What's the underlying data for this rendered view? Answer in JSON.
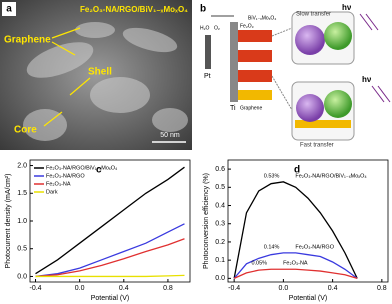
{
  "panels": {
    "a": {
      "label": "a",
      "title": "Fe₂O₃-NA/RGO/BiV₁₋ₓMoₓO₄",
      "annotations": [
        "Graphene",
        "Shell",
        "Core"
      ],
      "scale_bar": "50 nm"
    },
    "b": {
      "label": "b",
      "top_texts": [
        "hν",
        "Slow transfer"
      ],
      "bottom_texts": [
        "hν",
        "Fast transfer"
      ],
      "electrode_texts": [
        "Pt",
        "Ti",
        "Fe₂O₃",
        "BiV₁₋ₓMoₓO₄",
        "Graphene",
        "H₂O",
        "O₂"
      ]
    }
  },
  "chart_data": [
    {
      "type": "line",
      "panel": "c",
      "x_label": "Potential (V)",
      "y_label": "Photocurrent density (mA/cm²)",
      "x": [
        -0.4,
        -0.2,
        0.0,
        0.2,
        0.4,
        0.6,
        0.8,
        0.95
      ],
      "series": [
        {
          "name": "Fe₂O₃-NA/RGO/BiV₁₋ₓMoₓO₄",
          "color": "#000000",
          "values": [
            0.05,
            0.3,
            0.6,
            0.9,
            1.2,
            1.5,
            1.75,
            1.97
          ]
        },
        {
          "name": "Fe₂O₃-NA/RGO",
          "color": "#3a3adf",
          "values": [
            0.0,
            0.05,
            0.15,
            0.3,
            0.45,
            0.6,
            0.8,
            0.95
          ]
        },
        {
          "name": "Fe₂O₃-NA",
          "color": "#e03030",
          "values": [
            0.0,
            0.03,
            0.1,
            0.2,
            0.32,
            0.45,
            0.57,
            0.68
          ]
        },
        {
          "name": "Dark",
          "color": "#e8e000",
          "values": [
            0.0,
            0.0,
            0.0,
            0.0,
            0.0,
            0.0,
            0.01,
            0.02
          ]
        }
      ],
      "xlim": [
        -0.45,
        1.0
      ],
      "xticks": [
        -0.4,
        {
          "value": 0,
          "label": "0.0"
        },
        0.4,
        0.8
      ],
      "ylim": [
        -0.1,
        2.1
      ],
      "yticks": [
        {
          "value": 0,
          "label": "0.0"
        },
        0.5,
        {
          "value": 1,
          "label": "1.0"
        },
        1.5,
        {
          "value": 2,
          "label": "2.0"
        }
      ],
      "legend": "upper-left"
    },
    {
      "type": "line",
      "panel": "d",
      "x_label": "Potential (V)",
      "y_label": "Photoconversion efficiency (%)",
      "x": [
        -0.4,
        -0.3,
        -0.2,
        -0.1,
        0.0,
        0.1,
        0.2,
        0.3,
        0.4,
        0.5,
        0.6
      ],
      "series": [
        {
          "name": "Fe₂O₃-NA/RGO/BiV₁₋ₓMoₓO₄",
          "color": "#000000",
          "peak_label": "0.53%",
          "values": [
            0.0,
            0.36,
            0.48,
            0.52,
            0.53,
            0.5,
            0.44,
            0.36,
            0.26,
            0.14,
            0.0
          ]
        },
        {
          "name": "Fe₂O₃-NA/RGO",
          "color": "#3a3adf",
          "peak_label": "0.14%",
          "values": [
            0.0,
            0.08,
            0.11,
            0.13,
            0.14,
            0.14,
            0.13,
            0.12,
            0.09,
            0.05,
            0.0
          ]
        },
        {
          "name": "Fe₂O₃-NA",
          "color": "#e03030",
          "peak_label": "0.05%",
          "values": [
            0.0,
            0.03,
            0.045,
            0.05,
            0.05,
            0.05,
            0.045,
            0.04,
            0.03,
            0.02,
            0.0
          ]
        }
      ],
      "xlim": [
        -0.45,
        0.85
      ],
      "xticks": [
        -0.4,
        {
          "value": 0,
          "label": "0.0"
        },
        0.4,
        0.8
      ],
      "ylim": [
        -0.02,
        0.65
      ],
      "yticks": [
        {
          "value": 0,
          "label": "0.0"
        },
        0.1,
        0.2,
        0.3,
        0.4,
        0.5,
        0.6
      ],
      "legend": "inline"
    }
  ]
}
